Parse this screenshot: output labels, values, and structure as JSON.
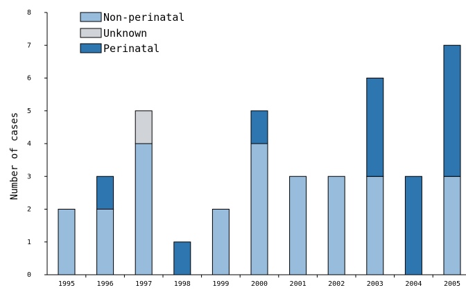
{
  "chart_data": {
    "type": "bar",
    "stacked": true,
    "categories": [
      "1995",
      "1996",
      "1997",
      "1998",
      "1999",
      "2000",
      "2001",
      "2002",
      "2003",
      "2004",
      "2005"
    ],
    "series": [
      {
        "name": "Non-perinatal",
        "color": "#98bcdc",
        "values": [
          2,
          2,
          4,
          0,
          2,
          4,
          3,
          3,
          3,
          0,
          3
        ]
      },
      {
        "name": "Unknown",
        "color": "#d0d3d8",
        "values": [
          0,
          0,
          1,
          0,
          0,
          0,
          0,
          0,
          0,
          0,
          0
        ]
      },
      {
        "name": "Perinatal",
        "color": "#2e76b0",
        "values": [
          0,
          1,
          0,
          1,
          0,
          1,
          0,
          0,
          3,
          3,
          4
        ]
      }
    ],
    "title": "",
    "xlabel": "",
    "ylabel": "Number of cases",
    "ylim": [
      0,
      8
    ],
    "yticks": [
      "0",
      "1",
      "2",
      "3",
      "4",
      "5",
      "6",
      "7",
      "8"
    ],
    "legend_position": "top-left",
    "grid": false
  }
}
